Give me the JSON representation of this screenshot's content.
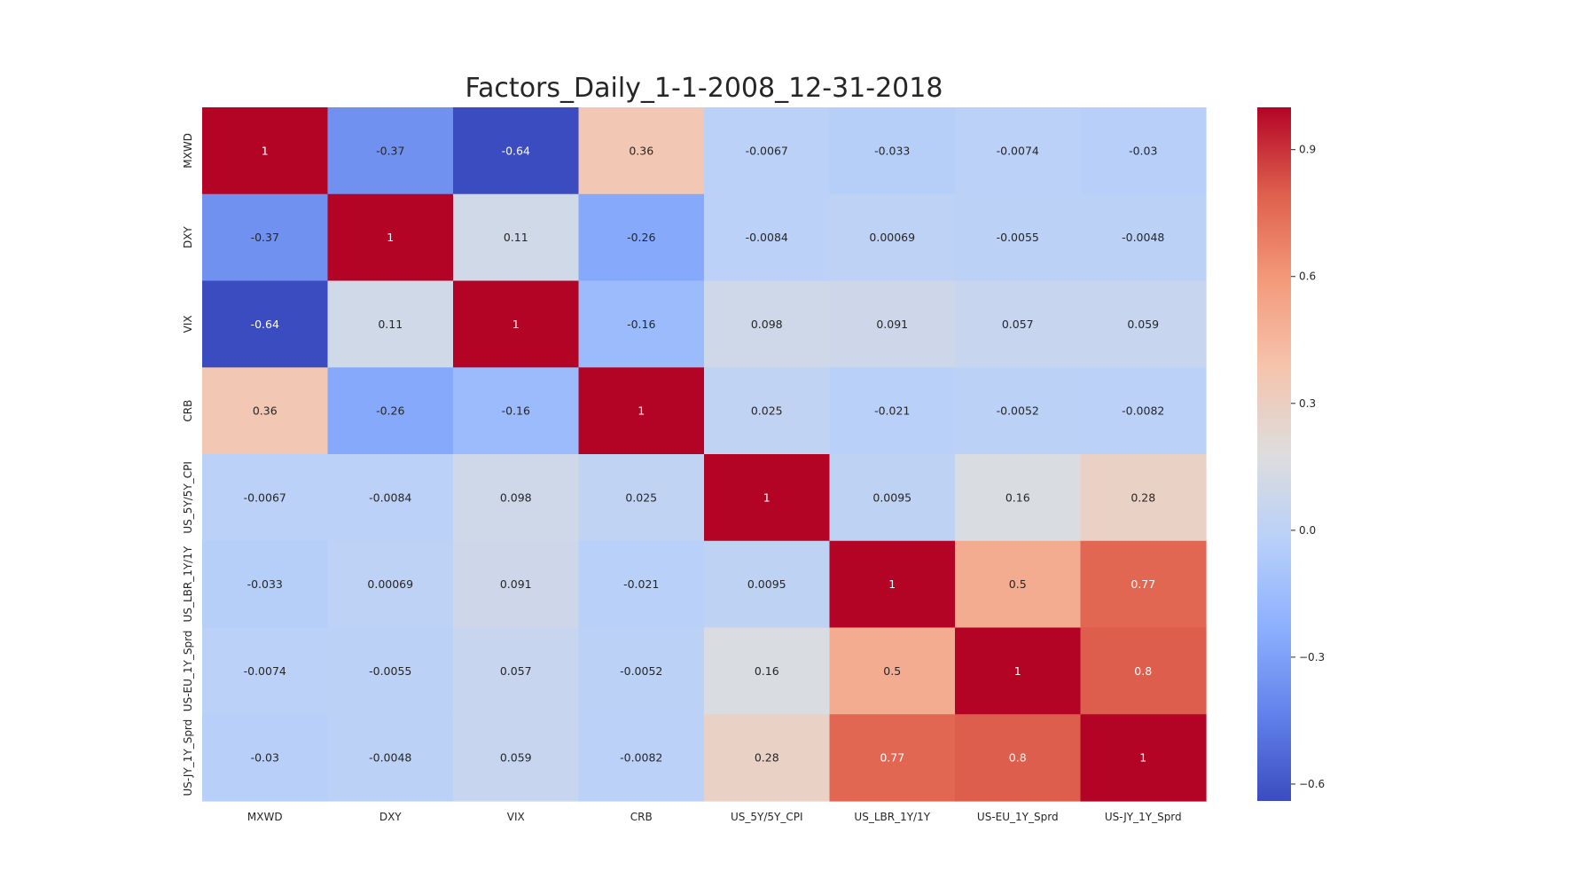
{
  "chart_data": {
    "type": "heatmap",
    "title": "Factors_Daily_1-1-2008_12-31-2018",
    "x_labels": [
      "MXWD",
      "DXY",
      "VIX",
      "CRB",
      "US_5Y/5Y_CPI",
      "US_LBR_1Y/1Y",
      "US-EU_1Y_Sprd",
      "US-JY_1Y_Sprd"
    ],
    "y_labels": [
      "MXWD",
      "DXY",
      "VIX",
      "CRB",
      "US_5Y/5Y_CPI",
      "US_LBR_1Y/1Y",
      "US-EU_1Y_Sprd",
      "US-JY_1Y_Sprd"
    ],
    "values": [
      [
        1,
        -0.37,
        -0.64,
        0.36,
        -0.0067,
        -0.033,
        -0.0074,
        -0.03
      ],
      [
        -0.37,
        1,
        0.11,
        -0.26,
        -0.0084,
        0.00069,
        -0.0055,
        -0.0048
      ],
      [
        -0.64,
        0.11,
        1,
        -0.16,
        0.098,
        0.091,
        0.057,
        0.059
      ],
      [
        0.36,
        -0.26,
        -0.16,
        1,
        0.025,
        -0.021,
        -0.0052,
        -0.0082
      ],
      [
        -0.0067,
        -0.0084,
        0.098,
        0.025,
        1,
        0.0095,
        0.16,
        0.28
      ],
      [
        -0.033,
        0.00069,
        0.091,
        -0.021,
        0.0095,
        1,
        0.5,
        0.77
      ],
      [
        -0.0074,
        -0.0055,
        0.057,
        -0.0052,
        0.16,
        0.5,
        1,
        0.8
      ],
      [
        -0.03,
        -0.0048,
        0.059,
        -0.0082,
        0.28,
        0.77,
        0.8,
        1
      ]
    ],
    "colormap": "coolwarm",
    "vmin": -0.64,
    "vmax": 1,
    "colorbar_ticks": [
      0.9,
      0.6,
      0.3,
      0.0,
      -0.3,
      -0.6
    ],
    "colorbar_tick_labels": [
      "0.9",
      "0.6",
      "0.3",
      "0.0",
      "−0.3",
      "−0.6"
    ],
    "annotations": true
  }
}
